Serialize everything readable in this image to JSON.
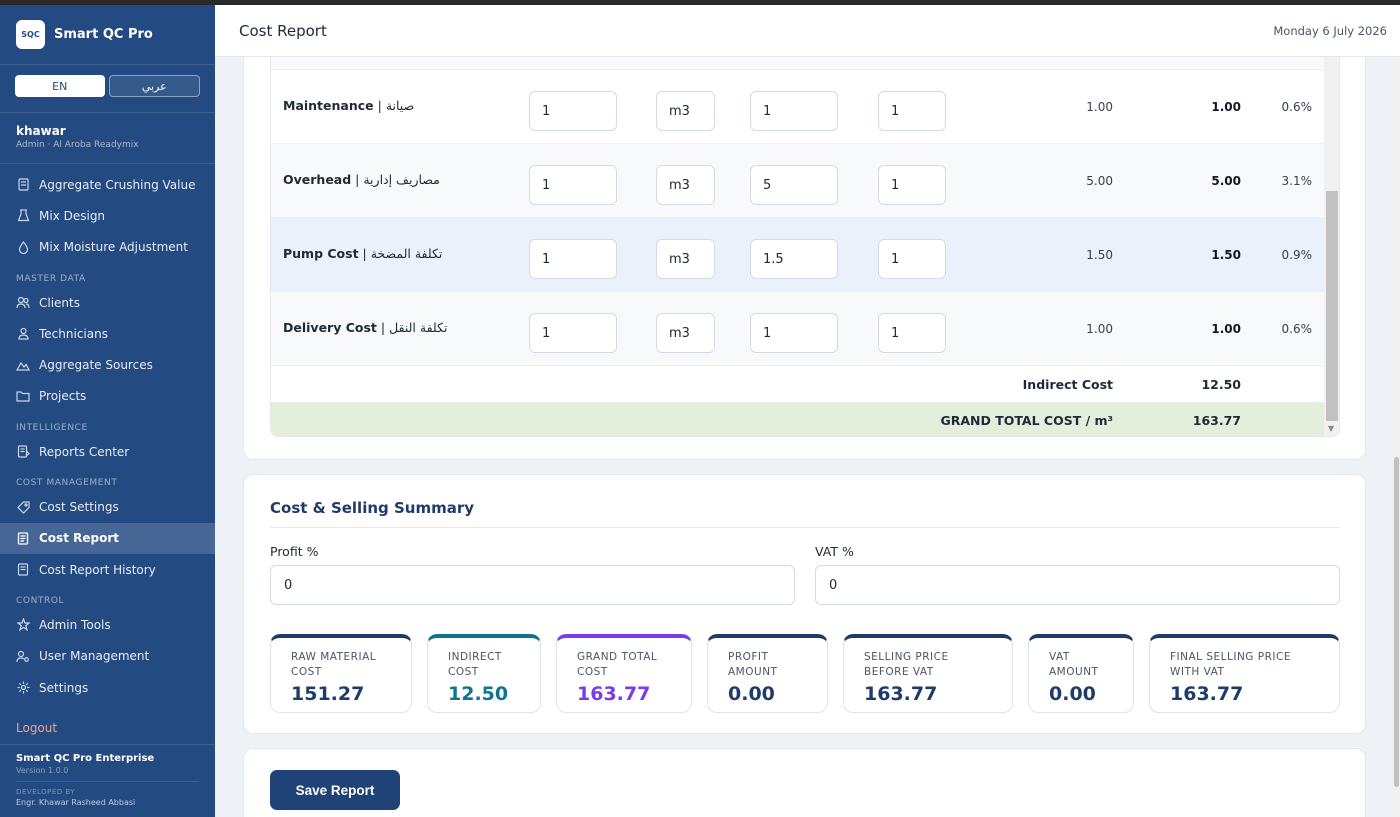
{
  "app": {
    "name": "Smart QC Pro",
    "logo_text": "SQC"
  },
  "lang": {
    "en": "EN",
    "ar": "عربي"
  },
  "user": {
    "name": "khawar",
    "role": "Admin · Al Aroba Readymix"
  },
  "nav": {
    "top": [
      {
        "label": "Aggregate Crushing Value",
        "icon": "flask-icon"
      },
      {
        "label": "Mix Design",
        "icon": "beaker-icon"
      },
      {
        "label": "Mix Moisture Adjustment",
        "icon": "drop-icon"
      }
    ],
    "master_label": "MASTER DATA",
    "master": [
      {
        "label": "Clients",
        "icon": "users-icon"
      },
      {
        "label": "Technicians",
        "icon": "person-icon"
      },
      {
        "label": "Aggregate Sources",
        "icon": "mountain-icon"
      },
      {
        "label": "Projects",
        "icon": "folder-icon"
      }
    ],
    "intel_label": "INTELLIGENCE",
    "intel": [
      {
        "label": "Reports Center",
        "icon": "report-icon"
      }
    ],
    "cost_label": "COST MANAGEMENT",
    "cost": [
      {
        "label": "Cost Settings",
        "icon": "tag-icon"
      },
      {
        "label": "Cost Report",
        "icon": "document-icon"
      },
      {
        "label": "Cost Report History",
        "icon": "history-icon"
      }
    ],
    "control_label": "CONTROL",
    "control": [
      {
        "label": "Admin Tools",
        "icon": "star-icon"
      },
      {
        "label": "User Management",
        "icon": "user-cog-icon"
      },
      {
        "label": "Settings",
        "icon": "gear-icon"
      }
    ],
    "logout": "Logout"
  },
  "footer": {
    "title": "Smart QC Pro Enterprise",
    "version": "Version 1.0.0",
    "dev_label": "DEVELOPED BY",
    "dev_name": "Engr. Khawar Rasheed Abbasi"
  },
  "header": {
    "title": "Cost Report",
    "date": "Monday 6 July 2026"
  },
  "cost_rows": [
    {
      "label_en": "Maintenance",
      "label_ar": "صيانة",
      "qty": "1",
      "unit": "m3",
      "rate": "1",
      "factor": "1",
      "cost": "1.00",
      "total": "1.00",
      "pct": "0.6%"
    },
    {
      "label_en": "Overhead",
      "label_ar": "مصاريف إدارية",
      "qty": "1",
      "unit": "m3",
      "rate": "5",
      "factor": "1",
      "cost": "5.00",
      "total": "5.00",
      "pct": "3.1%"
    },
    {
      "label_en": "Pump Cost",
      "label_ar": "تكلفة المضخة",
      "qty": "1",
      "unit": "m3",
      "rate": "1.5",
      "factor": "1",
      "cost": "1.50",
      "total": "1.50",
      "pct": "0.9%"
    },
    {
      "label_en": "Delivery Cost",
      "label_ar": "تكلفة النقل",
      "qty": "1",
      "unit": "m3",
      "rate": "1",
      "factor": "1",
      "cost": "1.00",
      "total": "1.00",
      "pct": "0.6%"
    }
  ],
  "totals": {
    "indirect_label": "Indirect Cost",
    "indirect_value": "12.50",
    "grand_label": "GRAND TOTAL COST / m³",
    "grand_value": "163.77"
  },
  "summary": {
    "title": "Cost & Selling Summary",
    "profit_label": "Profit %",
    "profit_value": "0",
    "vat_label": "VAT %",
    "vat_value": "0",
    "stats": [
      {
        "label": "RAW MATERIAL COST",
        "value": "151.27",
        "accent": "#1f3c68",
        "value_color": "#1f3c68"
      },
      {
        "label": "INDIRECT COST",
        "value": "12.50",
        "accent": "#0e7490",
        "value_color": "#0e7490"
      },
      {
        "label": "GRAND TOTAL COST",
        "value": "163.77",
        "accent": "#7c3aed",
        "value_color": "#7c3aed"
      },
      {
        "label": "PROFIT AMOUNT",
        "value": "0.00",
        "accent": "#1f3c68",
        "value_color": "#1f3c68"
      },
      {
        "label": "SELLING PRICE BEFORE VAT",
        "value": "163.77",
        "accent": "#1f3c68",
        "value_color": "#1f3c68"
      },
      {
        "label": "VAT AMOUNT",
        "value": "0.00",
        "accent": "#1f3c68",
        "value_color": "#1f3c68"
      },
      {
        "label": "FINAL SELLING PRICE WITH VAT",
        "value": "163.77",
        "accent": "#1f3c68",
        "value_color": "#1f3c68"
      }
    ]
  },
  "actions": {
    "save": "Save Report"
  }
}
